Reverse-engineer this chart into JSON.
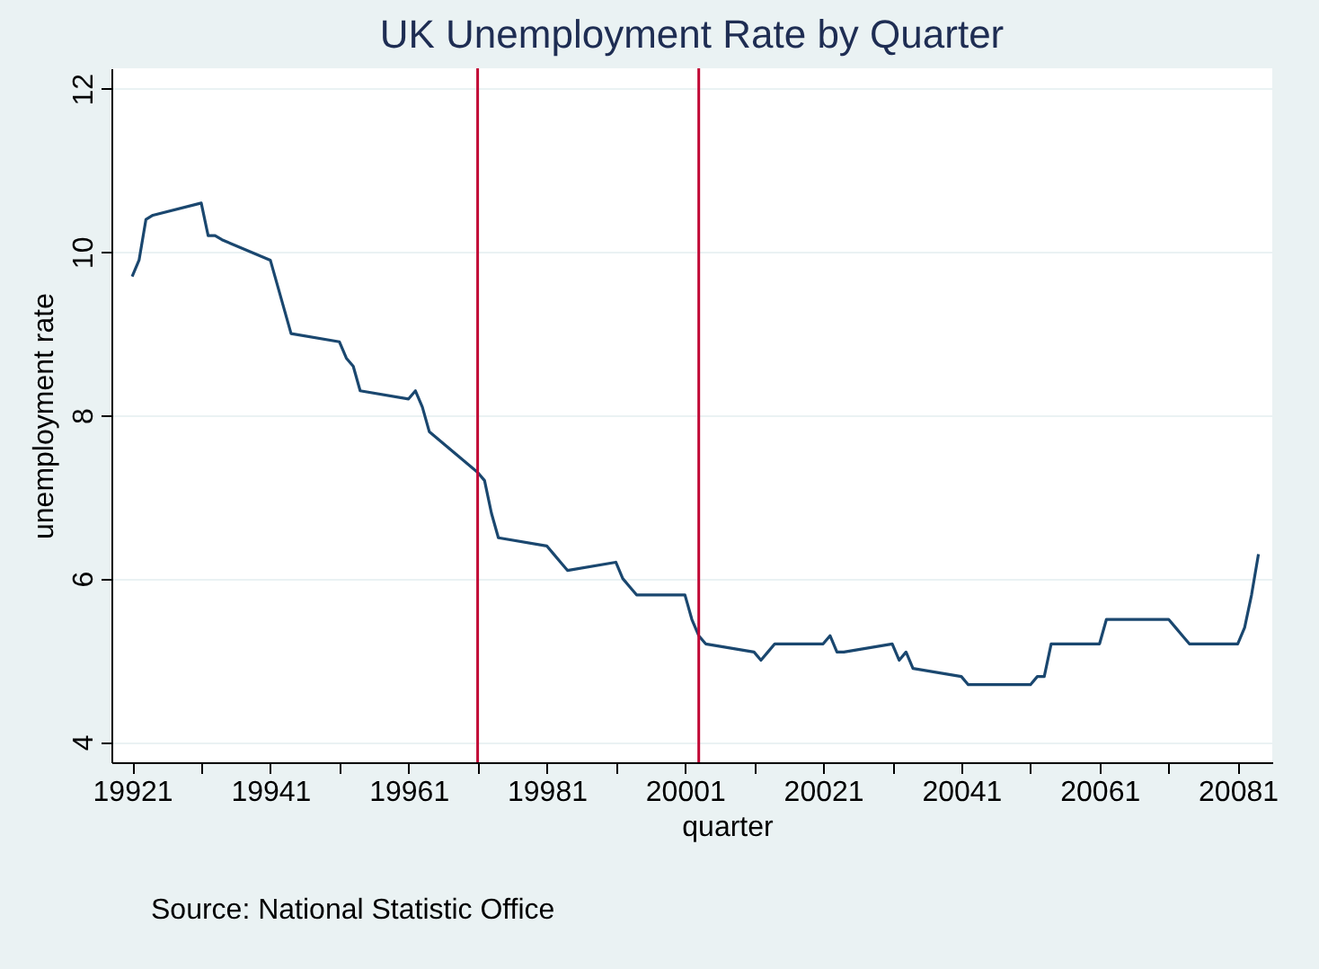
{
  "chart_data": {
    "type": "line",
    "title": "UK Unemployment Rate by Quarter",
    "xlabel": "quarter",
    "ylabel": "unemployment rate",
    "annotations": [
      "Source: National Statistic Office"
    ],
    "x": [
      19921,
      19922,
      19923,
      19924,
      19931,
      19932,
      19933,
      19934,
      19941,
      19942,
      19943,
      19944,
      19951,
      19952,
      19953,
      19954,
      19961,
      19962,
      19963,
      19964,
      19971,
      19972,
      19973,
      19974,
      19981,
      19982,
      19983,
      19984,
      19991,
      19992,
      19993,
      19994,
      20001,
      20002,
      20003,
      20004,
      20011,
      20012,
      20013,
      20014,
      20021,
      20022,
      20023,
      20024,
      20031,
      20032,
      20033,
      20034,
      20041,
      20042,
      20043,
      20044,
      20051,
      20052,
      20053,
      20054,
      20061,
      20062,
      20063,
      20064,
      20071,
      20072,
      20073,
      20074,
      20081,
      20082,
      20083,
      20084
    ],
    "series": [
      {
        "color": "#1a476f",
        "values": [
          9.7,
          9.9,
          10.4,
          10.45,
          10.6,
          10.2,
          10.2,
          10.15,
          9.9,
          9.6,
          9.3,
          9.0,
          8.9,
          8.7,
          8.6,
          8.3,
          8.2,
          8.3,
          8.1,
          7.8,
          7.3,
          7.2,
          6.8,
          6.5,
          6.4,
          6.3,
          6.2,
          6.1,
          6.2,
          6.0,
          5.9,
          5.8,
          5.8,
          5.5,
          5.3,
          5.2,
          5.1,
          5.0,
          5.1,
          5.2,
          5.2,
          5.3,
          5.1,
          5.1,
          5.2,
          5.0,
          5.1,
          4.9,
          4.8,
          4.7,
          4.7,
          4.7,
          4.7,
          4.8,
          4.8,
          5.2,
          5.2,
          5.5,
          5.5,
          5.5,
          5.5,
          5.4,
          5.3,
          5.2,
          5.2,
          5.4,
          5.8,
          6.3
        ]
      }
    ],
    "xlim": [
      19918,
      20086
    ],
    "ylim": [
      3.75,
      12.25
    ],
    "xticks": [
      19921,
      {
        "value": 19931,
        "label": null
      },
      19941,
      {
        "value": 19951,
        "label": null
      },
      19961,
      {
        "value": 19971,
        "label": null
      },
      19981,
      {
        "value": 19991,
        "label": null
      },
      20001,
      {
        "value": 20011,
        "label": null
      },
      20021,
      {
        "value": 20031,
        "label": null
      },
      20041,
      {
        "value": 20051,
        "label": null
      },
      20061,
      {
        "value": 20071,
        "label": null
      },
      20081
    ],
    "yticks": [
      4,
      6,
      8,
      10,
      12
    ],
    "grid": "y",
    "ref_lines": [
      {
        "axis": "x",
        "value": 19971,
        "color": "#c10534"
      },
      {
        "axis": "x",
        "value": 20003,
        "color": "#c10534"
      }
    ]
  }
}
